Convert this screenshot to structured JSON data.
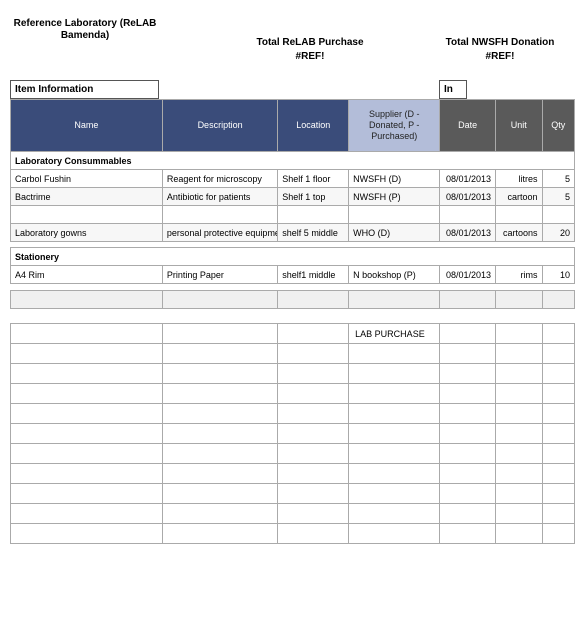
{
  "header": {
    "org_line1": "Reference Laboratory (ReLAB",
    "org_line2": "Bamenda)",
    "total_purchase_label": "Total ReLAB Purchase",
    "total_purchase_value": "#REF!",
    "total_donation_label": "Total NWSFH Donation",
    "total_donation_value": "#REF!"
  },
  "section_labels": {
    "item_info": "Item Information",
    "in": "In"
  },
  "columns": {
    "name": "Name",
    "description": "Description",
    "location": "Location",
    "supplier": "Supplier       (D - Donated,    P - Purchased)",
    "date": "Date",
    "unit": "Unit",
    "qty": "Qty"
  },
  "colors": {
    "header_dark": "#3a4c7a",
    "header_light": "#b3bdd9",
    "header_gray": "#5a5a5a",
    "border": "#aaaaaa",
    "alt_row": "#f7f7f7",
    "spacer": "#f0f0f0"
  },
  "categories": [
    {
      "name": "Laboratory Consummables",
      "rows": [
        {
          "name": "Carbol Fushin",
          "desc": "Reagent for microscopy",
          "loc": "Shelf 1 floor",
          "sup": "NWSFH (D)",
          "date": "08/01/2013",
          "unit": "litres",
          "qty": "5"
        },
        {
          "name": "Bactrime",
          "desc": "Antibiotic for patients",
          "loc": "Shelf 1 top",
          "sup": "NWSFH (P)",
          "date": "08/01/2013",
          "unit": "cartoon",
          "qty": "5"
        },
        {
          "name": "",
          "desc": "",
          "loc": "",
          "sup": "",
          "date": "",
          "unit": "",
          "qty": ""
        },
        {
          "name": "Laboratory gowns",
          "desc": "personal protective equipment",
          "loc": "shelf 5 middle",
          "sup": "WHO (D)",
          "date": "08/01/2013",
          "unit": "cartoons",
          "qty": "20"
        }
      ]
    },
    {
      "name": "Stationery",
      "rows": [
        {
          "name": "A4 Rim",
          "desc": "Printing Paper",
          "loc": "shelf1 middle",
          "sup": "N bookshop (P)",
          "date": "08/01/2013",
          "unit": "rims",
          "qty": "10"
        }
      ]
    }
  ],
  "grid": {
    "lab_purchase_label": "LAB PURCHASE",
    "row_count": 11
  }
}
